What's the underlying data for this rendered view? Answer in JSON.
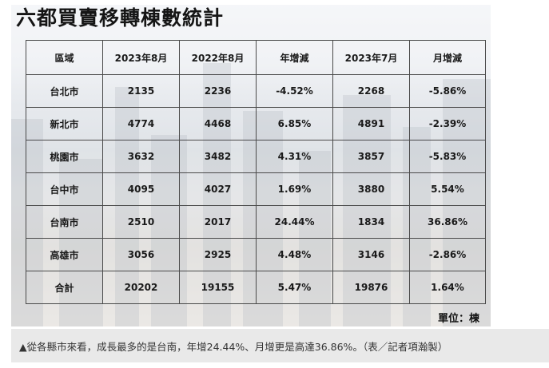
{
  "title": "六都買賣移轉棟數統計",
  "table": {
    "headers": [
      "區域",
      "2023年8月",
      "2022年8月",
      "年增減",
      "2023年7月",
      "月增減"
    ],
    "rows": [
      [
        "台北市",
        "2135",
        "2236",
        "-4.52%",
        "2268",
        "-5.86%"
      ],
      [
        "新北市",
        "4774",
        "4468",
        "6.85%",
        "4891",
        "-2.39%"
      ],
      [
        "桃園市",
        "3632",
        "3482",
        "4.31%",
        "3857",
        "-5.83%"
      ],
      [
        "台中市",
        "4095",
        "4027",
        "1.69%",
        "3880",
        "5.54%"
      ],
      [
        "台南市",
        "2510",
        "2017",
        "24.44%",
        "1834",
        "36.86%"
      ],
      [
        "高雄市",
        "3056",
        "2925",
        "4.48%",
        "3146",
        "-2.86%"
      ],
      [
        "合計",
        "20202",
        "19155",
        "5.47%",
        "19876",
        "1.64%"
      ]
    ]
  },
  "unit_label": "單位：棟",
  "caption": "▲從各縣市來看，成長最多的是台南，年增24.44%、月增更是高達36.86%。（表／記者項瀚製）"
}
